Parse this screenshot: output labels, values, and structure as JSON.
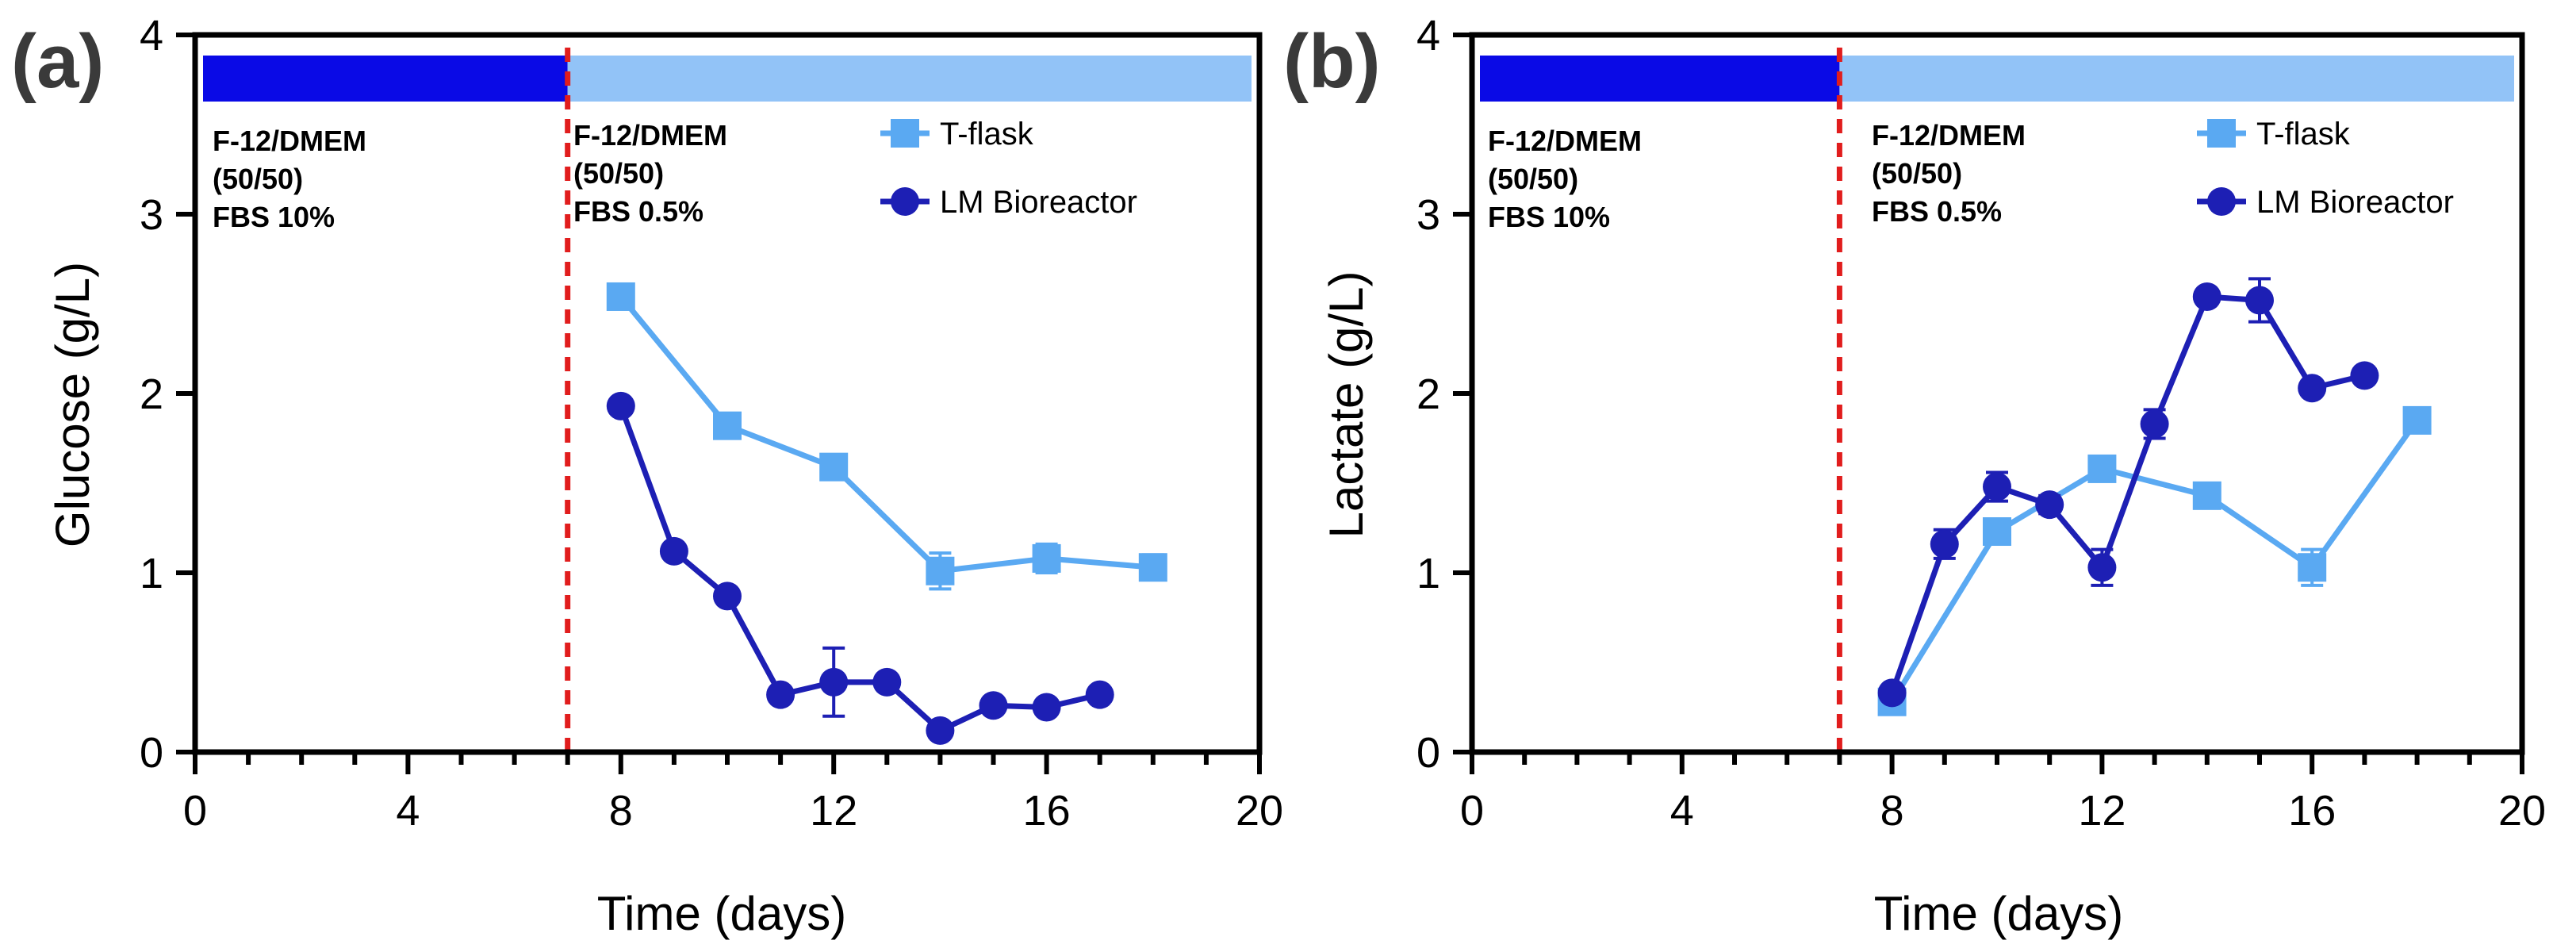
{
  "figure": {
    "colors": {
      "tflask": "#5aa9f2",
      "bioreactor": "#1d1fb4",
      "bar_phase1": "#0a0ae6",
      "bar_phase2": "#92c3f7",
      "divider": "#e11d1d"
    }
  },
  "chart_data": [
    {
      "type": "line",
      "panel_label": "(a)",
      "xlabel": "Time (days)",
      "ylabel": "Glucose (g/L)",
      "xlim": [
        0,
        20
      ],
      "ylim": [
        0,
        4
      ],
      "xticks": [
        "0",
        "4",
        "8",
        "12",
        "16",
        "20"
      ],
      "yticks": [
        "0",
        "1",
        "2",
        "3",
        "4"
      ],
      "divider_x": 7,
      "phases": [
        {
          "lines": [
            "F-12/DMEM",
            "(50/50)",
            "FBS 10%"
          ]
        },
        {
          "lines": [
            "F-12/DMEM",
            "(50/50)",
            "FBS 0.5%"
          ]
        }
      ],
      "series": [
        {
          "name": "T-flask",
          "marker": "square",
          "x": [
            8,
            10,
            12,
            14,
            16,
            18
          ],
          "y": [
            2.54,
            1.82,
            1.59,
            1.01,
            1.08,
            1.03
          ],
          "err": [
            0.03,
            0.03,
            0.03,
            0.1,
            0.08,
            0.07
          ]
        },
        {
          "name": "LM Bioreactor",
          "marker": "circle",
          "x": [
            8,
            9,
            10,
            11,
            12,
            13,
            14,
            15,
            16,
            17
          ],
          "y": [
            1.93,
            1.12,
            0.87,
            0.32,
            0.39,
            0.39,
            0.12,
            0.26,
            0.25,
            0.32
          ],
          "err": [
            0.02,
            0.03,
            0.03,
            0.03,
            0.19,
            0.03,
            0.03,
            0.03,
            0.03,
            0.02
          ]
        }
      ]
    },
    {
      "type": "line",
      "panel_label": "(b)",
      "xlabel": "Time (days)",
      "ylabel": "Lactate (g/L)",
      "xlim": [
        0,
        20
      ],
      "ylim": [
        0,
        4
      ],
      "xticks": [
        "0",
        "4",
        "8",
        "12",
        "16",
        "20"
      ],
      "yticks": [
        "0",
        "1",
        "2",
        "3",
        "4"
      ],
      "divider_x": 7,
      "phases": [
        {
          "lines": [
            "F-12/DMEM",
            "(50/50)",
            "FBS 10%"
          ]
        },
        {
          "lines": [
            "F-12/DMEM",
            "(50/50)",
            "FBS 0.5%"
          ]
        }
      ],
      "series": [
        {
          "name": "T-flask",
          "marker": "square",
          "x": [
            8,
            10,
            12,
            14,
            16,
            18
          ],
          "y": [
            0.28,
            1.23,
            1.58,
            1.43,
            1.03,
            1.85
          ],
          "err": [
            0.03,
            0.04,
            0.04,
            0.04,
            0.1,
            0.04
          ]
        },
        {
          "name": "LM Bioreactor",
          "marker": "circle",
          "x": [
            8,
            9,
            10,
            11,
            12,
            13,
            14,
            15,
            16,
            17
          ],
          "y": [
            0.33,
            1.16,
            1.48,
            1.38,
            1.03,
            1.83,
            2.54,
            2.52,
            2.03,
            2.1
          ],
          "err": [
            0.03,
            0.08,
            0.08,
            0.05,
            0.1,
            0.08,
            0.03,
            0.12,
            0.03,
            0.03
          ]
        }
      ]
    }
  ]
}
